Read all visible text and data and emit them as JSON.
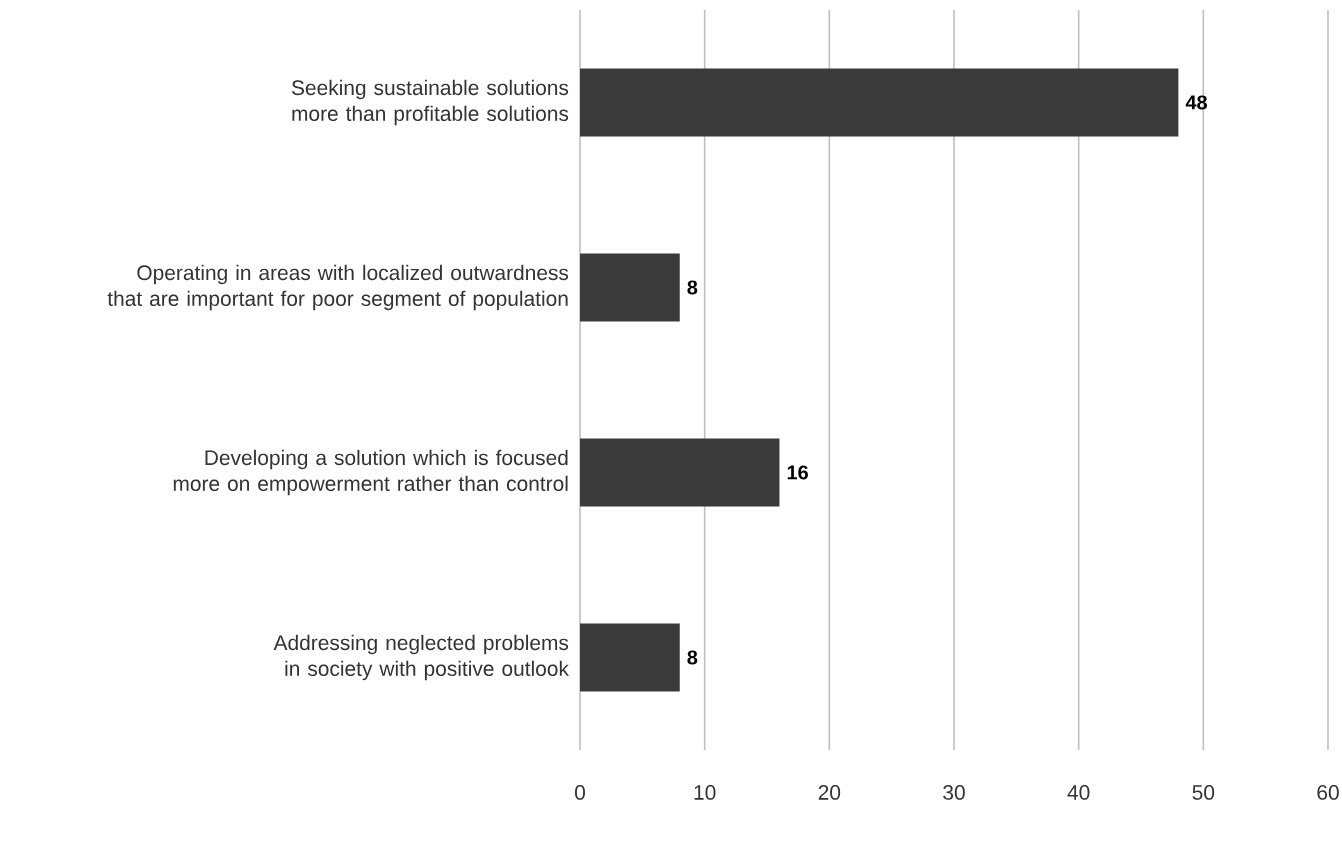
{
  "chart_data": {
    "type": "bar",
    "orientation": "horizontal",
    "categories": [
      "Seeking sustainable solutions more than profitable solutions",
      "Operating in areas with localized outwardness that are important for poor segment of population",
      "Developing a solution which is focused more on empowerment rather than control",
      "Addressing neglected problems in society with positive outlook"
    ],
    "values": [
      48,
      8,
      16,
      8
    ],
    "color": "#3a3a3a",
    "xlim": [
      0,
      60
    ],
    "xticks": [
      0,
      10,
      20,
      30,
      40,
      50,
      60
    ],
    "grid": "x",
    "data_labels": true
  }
}
